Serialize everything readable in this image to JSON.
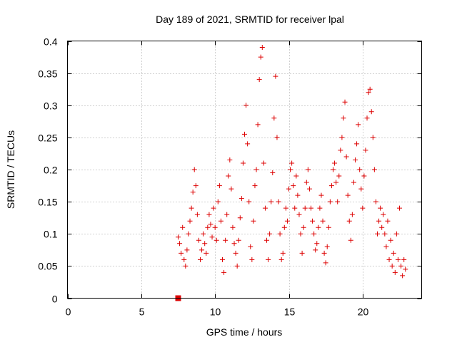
{
  "chart_data": {
    "type": "scatter",
    "title": "Day 189 of 2021, SRMTID for receiver lpal",
    "xlabel": "GPS time / hours",
    "ylabel": "SRMTID / TECUs",
    "xlim": [
      0,
      24
    ],
    "ylim": [
      0,
      0.4
    ],
    "x_ticks": [
      0,
      5,
      10,
      15,
      20
    ],
    "x_tick_labels": [
      "0",
      "5",
      "10",
      "15",
      "20"
    ],
    "y_ticks": [
      0,
      0.05,
      0.1,
      0.15,
      0.2,
      0.25,
      0.3,
      0.35,
      0.4
    ],
    "y_tick_labels": [
      "0",
      "0.05",
      "0.1",
      "0.15",
      "0.2",
      "0.25",
      "0.3",
      "0.35",
      "0.4"
    ],
    "grid": true,
    "marker": "plus",
    "color": "#dd0000",
    "zero_marker": {
      "x": 7.5,
      "y": 0,
      "marker": "square"
    },
    "series": [
      {
        "values": [
          [
            7.5,
            0.095
          ],
          [
            7.6,
            0.085
          ],
          [
            7.7,
            0.07
          ],
          [
            7.8,
            0.11
          ],
          [
            7.9,
            0.06
          ],
          [
            8.0,
            0.05
          ],
          [
            8.1,
            0.075
          ],
          [
            8.2,
            0.1
          ],
          [
            8.3,
            0.12
          ],
          [
            8.4,
            0.14
          ],
          [
            8.5,
            0.165
          ],
          [
            8.6,
            0.2
          ],
          [
            8.7,
            0.175
          ],
          [
            8.8,
            0.13
          ],
          [
            8.9,
            0.09
          ],
          [
            9.0,
            0.06
          ],
          [
            9.1,
            0.075
          ],
          [
            9.2,
            0.1
          ],
          [
            9.3,
            0.085
          ],
          [
            9.4,
            0.07
          ],
          [
            9.5,
            0.11
          ],
          [
            9.6,
            0.13
          ],
          [
            9.7,
            0.115
          ],
          [
            9.8,
            0.095
          ],
          [
            9.9,
            0.14
          ],
          [
            10.0,
            0.11
          ],
          [
            10.1,
            0.09
          ],
          [
            10.2,
            0.15
          ],
          [
            10.3,
            0.175
          ],
          [
            10.4,
            0.12
          ],
          [
            10.5,
            0.06
          ],
          [
            10.6,
            0.04
          ],
          [
            10.7,
            0.09
          ],
          [
            10.8,
            0.13
          ],
          [
            10.9,
            0.19
          ],
          [
            11.0,
            0.215
          ],
          [
            11.1,
            0.17
          ],
          [
            11.2,
            0.11
          ],
          [
            11.3,
            0.085
          ],
          [
            11.4,
            0.07
          ],
          [
            11.5,
            0.05
          ],
          [
            11.6,
            0.09
          ],
          [
            11.7,
            0.125
          ],
          [
            11.8,
            0.155
          ],
          [
            11.9,
            0.21
          ],
          [
            12.0,
            0.255
          ],
          [
            12.1,
            0.3
          ],
          [
            12.2,
            0.24
          ],
          [
            12.3,
            0.15
          ],
          [
            12.4,
            0.08
          ],
          [
            12.5,
            0.06
          ],
          [
            12.6,
            0.12
          ],
          [
            12.7,
            0.175
          ],
          [
            12.8,
            0.2
          ],
          [
            12.9,
            0.27
          ],
          [
            13.0,
            0.34
          ],
          [
            13.1,
            0.375
          ],
          [
            13.2,
            0.39
          ],
          [
            13.3,
            0.21
          ],
          [
            13.4,
            0.14
          ],
          [
            13.5,
            0.09
          ],
          [
            13.6,
            0.06
          ],
          [
            13.7,
            0.1
          ],
          [
            13.8,
            0.15
          ],
          [
            13.9,
            0.195
          ],
          [
            14.0,
            0.28
          ],
          [
            14.1,
            0.345
          ],
          [
            14.2,
            0.25
          ],
          [
            14.3,
            0.15
          ],
          [
            14.4,
            0.1
          ],
          [
            14.5,
            0.06
          ],
          [
            14.6,
            0.07
          ],
          [
            14.7,
            0.11
          ],
          [
            14.8,
            0.14
          ],
          [
            14.9,
            0.12
          ],
          [
            15.0,
            0.17
          ],
          [
            15.1,
            0.2
          ],
          [
            15.2,
            0.21
          ],
          [
            15.3,
            0.175
          ],
          [
            15.4,
            0.14
          ],
          [
            15.5,
            0.19
          ],
          [
            15.6,
            0.16
          ],
          [
            15.7,
            0.13
          ],
          [
            15.8,
            0.1
          ],
          [
            15.9,
            0.07
          ],
          [
            16.0,
            0.11
          ],
          [
            16.1,
            0.14
          ],
          [
            16.2,
            0.18
          ],
          [
            16.3,
            0.2
          ],
          [
            16.4,
            0.17
          ],
          [
            16.5,
            0.14
          ],
          [
            16.6,
            0.12
          ],
          [
            16.7,
            0.1
          ],
          [
            16.8,
            0.075
          ],
          [
            16.9,
            0.085
          ],
          [
            17.0,
            0.11
          ],
          [
            17.1,
            0.14
          ],
          [
            17.2,
            0.16
          ],
          [
            17.3,
            0.12
          ],
          [
            17.4,
            0.07
          ],
          [
            17.5,
            0.055
          ],
          [
            17.6,
            0.08
          ],
          [
            17.7,
            0.11
          ],
          [
            17.8,
            0.15
          ],
          [
            17.9,
            0.175
          ],
          [
            18.0,
            0.2
          ],
          [
            18.1,
            0.21
          ],
          [
            18.2,
            0.18
          ],
          [
            18.3,
            0.15
          ],
          [
            18.4,
            0.19
          ],
          [
            18.5,
            0.23
          ],
          [
            18.6,
            0.25
          ],
          [
            18.7,
            0.28
          ],
          [
            18.8,
            0.305
          ],
          [
            18.9,
            0.22
          ],
          [
            19.0,
            0.16
          ],
          [
            19.1,
            0.12
          ],
          [
            19.2,
            0.09
          ],
          [
            19.3,
            0.13
          ],
          [
            19.4,
            0.18
          ],
          [
            19.5,
            0.215
          ],
          [
            19.6,
            0.24
          ],
          [
            19.7,
            0.27
          ],
          [
            19.8,
            0.2
          ],
          [
            19.9,
            0.17
          ],
          [
            20.0,
            0.14
          ],
          [
            20.1,
            0.19
          ],
          [
            20.2,
            0.23
          ],
          [
            20.3,
            0.28
          ],
          [
            20.4,
            0.32
          ],
          [
            20.5,
            0.325
          ],
          [
            20.6,
            0.29
          ],
          [
            20.7,
            0.25
          ],
          [
            20.8,
            0.2
          ],
          [
            20.9,
            0.15
          ],
          [
            21.0,
            0.1
          ],
          [
            21.1,
            0.12
          ],
          [
            21.2,
            0.14
          ],
          [
            21.3,
            0.11
          ],
          [
            21.4,
            0.13
          ],
          [
            21.5,
            0.1
          ],
          [
            21.6,
            0.08
          ],
          [
            21.7,
            0.12
          ],
          [
            21.8,
            0.06
          ],
          [
            21.9,
            0.09
          ],
          [
            22.0,
            0.05
          ],
          [
            22.1,
            0.07
          ],
          [
            22.2,
            0.04
          ],
          [
            22.3,
            0.1
          ],
          [
            22.4,
            0.06
          ],
          [
            22.5,
            0.14
          ],
          [
            22.6,
            0.05
          ],
          [
            22.7,
            0.035
          ],
          [
            22.8,
            0.06
          ],
          [
            22.9,
            0.045
          ]
        ]
      }
    ]
  }
}
